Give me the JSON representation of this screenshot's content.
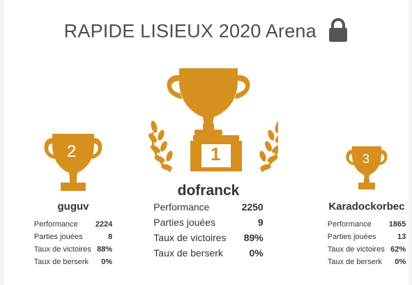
{
  "header": {
    "title": "RAPIDE LISIEUX 2020 Arena",
    "lock_icon": "lock-icon"
  },
  "colors": {
    "trophy": "#d59020",
    "text": "#333333",
    "title": "#4d4d4d",
    "lock": "#555555"
  },
  "podium": {
    "first": {
      "rank": "1",
      "name": "dofranck",
      "stats": [
        {
          "label": "Performance",
          "value": "2250"
        },
        {
          "label": "Parties jouées",
          "value": "9"
        },
        {
          "label": "Taux de victoires",
          "value": "89%"
        },
        {
          "label": "Taux de berserk",
          "value": "0%"
        }
      ]
    },
    "second": {
      "rank": "2",
      "name": "guguv",
      "stats": [
        {
          "label": "Performance",
          "value": "2224"
        },
        {
          "label": "Parties jouées",
          "value": "8"
        },
        {
          "label": "Taux de victoires",
          "value": "88%"
        },
        {
          "label": "Taux de berserk",
          "value": "0%"
        }
      ]
    },
    "third": {
      "rank": "3",
      "name": "Karadockorbec",
      "stats": [
        {
          "label": "Performance",
          "value": "1865"
        },
        {
          "label": "Parties jouées",
          "value": "13"
        },
        {
          "label": "Taux de victoires",
          "value": "62%"
        },
        {
          "label": "Taux de berserk",
          "value": "0%"
        }
      ]
    }
  }
}
